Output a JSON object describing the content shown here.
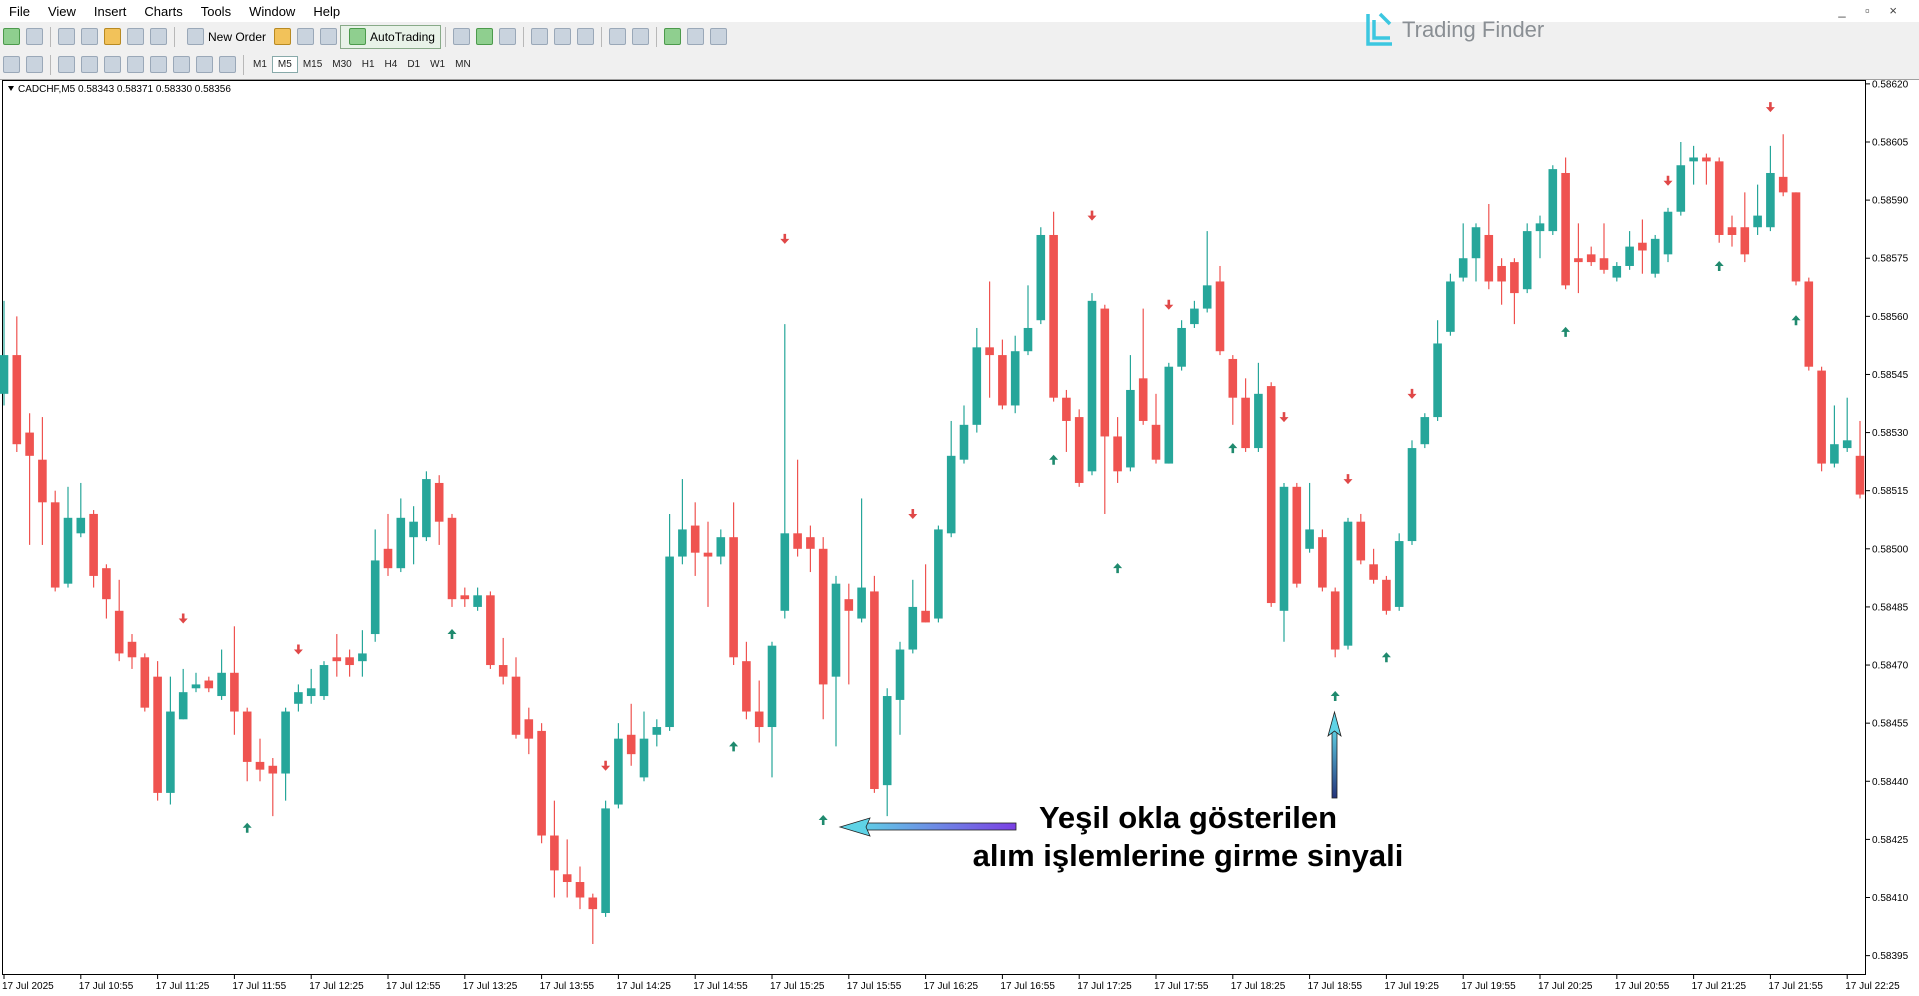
{
  "menu": [
    "File",
    "View",
    "Insert",
    "Charts",
    "Tools",
    "Window",
    "Help"
  ],
  "toolbar": {
    "new_order": "New Order",
    "autotrading": "AutoTrading"
  },
  "timeframes": [
    "M1",
    "M5",
    "M15",
    "M30",
    "H1",
    "H4",
    "D1",
    "W1",
    "MN"
  ],
  "logo": "Trading Finder",
  "chart_data": {
    "type": "candlestick",
    "symbol_info": "CADCHF,M5  0.58343 0.58371 0.58330 0.58356",
    "annotations": [
      "Yeşil okla gösterilen",
      "alım işlemlerine girme sinyali"
    ],
    "up_color": "#26a69a",
    "down_color": "#ef5350",
    "buy_color": "#1f8a6e",
    "sell_color": "#e04848",
    "open": [
      0.5854,
      0.5855,
      0.5853,
      0.58523,
      0.58512,
      0.58491,
      0.58504,
      0.58509,
      0.58495,
      0.58484,
      0.58476,
      0.58472,
      0.58467,
      0.58437,
      0.58456,
      0.58464,
      0.58466,
      0.58462,
      0.58468,
      0.58458,
      0.58445,
      0.58444,
      0.58442,
      0.5846,
      0.58462,
      0.58462,
      0.58472,
      0.58472,
      0.58471,
      0.58478,
      0.585,
      0.58495,
      0.58503,
      0.58503,
      0.58517,
      0.58508,
      0.58488,
      0.58485,
      0.58488,
      0.5847,
      0.58467,
      0.58456,
      0.58453,
      0.58426,
      0.58416,
      0.58414,
      0.5841,
      0.58406,
      0.58434,
      0.58452,
      0.58441,
      0.58452,
      0.58454,
      0.58498,
      0.58506,
      0.58499,
      0.58498,
      0.58503,
      0.58471,
      0.58458,
      0.58454,
      0.58484,
      0.58504,
      0.58503,
      0.585,
      0.58467,
      0.58487,
      0.58482,
      0.58489,
      0.58439,
      0.58461,
      0.58474,
      0.58484,
      0.58482,
      0.58504,
      0.58523,
      0.58532,
      0.58552,
      0.5855,
      0.58537,
      0.58551,
      0.58559,
      0.58581,
      0.58539,
      0.58534,
      0.5852,
      0.58562,
      0.58529,
      0.58521,
      0.58544,
      0.58532,
      0.58522,
      0.58547,
      0.58558,
      0.58562,
      0.58569,
      0.58549,
      0.58539,
      0.58526,
      0.58542,
      0.58484,
      0.58516,
      0.585,
      0.58503,
      0.58489,
      0.58475,
      0.58507,
      0.58496,
      0.58492,
      0.58485,
      0.58502,
      0.58527,
      0.58534,
      0.58556,
      0.5857,
      0.58575,
      0.58581,
      0.58573,
      0.58574,
      0.58567,
      0.58582,
      0.58582,
      0.58597,
      0.58575,
      0.58576,
      0.58575,
      0.5857,
      0.58573,
      0.58579,
      0.58571,
      0.58576,
      0.58587,
      0.586,
      0.58601,
      0.586,
      0.58583,
      0.58583,
      0.58583,
      0.58583,
      0.58596,
      0.58592,
      0.58569,
      0.58546,
      0.58522,
      0.58526,
      0.58524
    ],
    "high": [
      0.58564,
      0.5856,
      0.58535,
      0.58534,
      0.58515,
      0.58516,
      0.58517,
      0.5851,
      0.58496,
      0.58492,
      0.58478,
      0.58473,
      0.58471,
      0.58467,
      0.58469,
      0.58468,
      0.58467,
      0.58474,
      0.5848,
      0.58459,
      0.58451,
      0.58446,
      0.58459,
      0.58465,
      0.58469,
      0.58471,
      0.58478,
      0.58474,
      0.58479,
      0.58505,
      0.58509,
      0.58513,
      0.58511,
      0.5852,
      0.58519,
      0.58509,
      0.5849,
      0.5849,
      0.58489,
      0.58477,
      0.58472,
      0.58459,
      0.58455,
      0.58435,
      0.58425,
      0.58418,
      0.58411,
      0.58435,
      0.58455,
      0.5846,
      0.58458,
      0.58456,
      0.58509,
      0.58518,
      0.58512,
      0.58507,
      0.58505,
      0.58512,
      0.58476,
      0.58466,
      0.58476,
      0.58558,
      0.58523,
      0.58506,
      0.58503,
      0.58493,
      0.58491,
      0.58513,
      0.58493,
      0.58464,
      0.58476,
      0.58492,
      0.58496,
      0.58506,
      0.58533,
      0.58537,
      0.58557,
      0.58569,
      0.58554,
      0.58555,
      0.58568,
      0.58583,
      0.58587,
      0.58541,
      0.58536,
      0.58566,
      0.58563,
      0.58534,
      0.5855,
      0.58562,
      0.5854,
      0.58548,
      0.58559,
      0.58564,
      0.58582,
      0.58573,
      0.5855,
      0.58544,
      0.58548,
      0.58543,
      0.58517,
      0.58517,
      0.58517,
      0.58505,
      0.5849,
      0.58508,
      0.58509,
      0.585,
      0.58493,
      0.58504,
      0.58528,
      0.58535,
      0.58559,
      0.58571,
      0.58584,
      0.58584,
      0.58589,
      0.58575,
      0.58575,
      0.58584,
      0.58586,
      0.58599,
      0.58601,
      0.58584,
      0.58578,
      0.58584,
      0.58574,
      0.58582,
      0.58585,
      0.58581,
      0.58588,
      0.58605,
      0.58604,
      0.58602,
      0.58601,
      0.58586,
      0.58592,
      0.58594,
      0.58604,
      0.58607,
      0.58592,
      0.5857,
      0.58547,
      0.58537,
      0.58539,
      0.58533
    ],
    "low": [
      0.58537,
      0.58525,
      0.58501,
      0.58501,
      0.58489,
      0.5849,
      0.58503,
      0.5849,
      0.58482,
      0.58471,
      0.58469,
      0.58458,
      0.58435,
      0.58434,
      0.58456,
      0.58463,
      0.58463,
      0.58461,
      0.58452,
      0.5844,
      0.5844,
      0.58431,
      0.58435,
      0.58458,
      0.5846,
      0.58461,
      0.58467,
      0.58467,
      0.58467,
      0.58476,
      0.58493,
      0.58494,
      0.58496,
      0.58502,
      0.58501,
      0.58485,
      0.58485,
      0.58484,
      0.58469,
      0.58465,
      0.58451,
      0.58447,
      0.58424,
      0.5841,
      0.5841,
      0.58407,
      0.58398,
      0.58405,
      0.58433,
      0.58444,
      0.5844,
      0.58449,
      0.58453,
      0.58496,
      0.58493,
      0.58485,
      0.58496,
      0.5847,
      0.58456,
      0.5845,
      0.58441,
      0.58482,
      0.58498,
      0.58494,
      0.58456,
      0.58449,
      0.58465,
      0.58481,
      0.58437,
      0.58431,
      0.58452,
      0.58473,
      0.58481,
      0.58481,
      0.58503,
      0.58522,
      0.5853,
      0.58539,
      0.58536,
      0.58535,
      0.5855,
      0.58558,
      0.58538,
      0.58525,
      0.58516,
      0.58519,
      0.58509,
      0.58517,
      0.5852,
      0.58532,
      0.58522,
      0.58522,
      0.58546,
      0.58557,
      0.58561,
      0.5855,
      0.58532,
      0.58525,
      0.58525,
      0.58485,
      0.58476,
      0.5849,
      0.58499,
      0.58489,
      0.58472,
      0.58474,
      0.58496,
      0.58491,
      0.58483,
      0.58484,
      0.58501,
      0.58526,
      0.58533,
      0.58555,
      0.58569,
      0.58569,
      0.58567,
      0.58563,
      0.58558,
      0.58566,
      0.58575,
      0.58581,
      0.58567,
      0.58566,
      0.58573,
      0.58571,
      0.58569,
      0.58572,
      0.58571,
      0.5857,
      0.58574,
      0.58586,
      0.58594,
      0.58594,
      0.58579,
      0.58578,
      0.58574,
      0.58581,
      0.58582,
      0.58591,
      0.58568,
      0.58546,
      0.5852,
      0.58521,
      0.58525,
      0.58513
    ],
    "close": [
      0.5855,
      0.58527,
      0.58524,
      0.58512,
      0.5849,
      0.58508,
      0.58508,
      0.58493,
      0.58487,
      0.58473,
      0.58472,
      0.58459,
      0.58437,
      0.58458,
      0.58463,
      0.58465,
      0.58464,
      0.58468,
      0.58458,
      0.58445,
      0.58443,
      0.58442,
      0.58458,
      0.58463,
      0.58464,
      0.5847,
      0.58471,
      0.5847,
      0.58473,
      0.58497,
      0.58495,
      0.58508,
      0.58507,
      0.58518,
      0.58507,
      0.58487,
      0.58487,
      0.58488,
      0.5847,
      0.58467,
      0.58452,
      0.58451,
      0.58426,
      0.58417,
      0.58414,
      0.5841,
      0.58407,
      0.58433,
      0.58451,
      0.58447,
      0.58451,
      0.58454,
      0.58498,
      0.58505,
      0.58499,
      0.58498,
      0.58503,
      0.58472,
      0.58458,
      0.58454,
      0.58475,
      0.58504,
      0.585,
      0.585,
      0.58465,
      0.58491,
      0.58484,
      0.5849,
      0.58438,
      0.58462,
      0.58474,
      0.58485,
      0.58481,
      0.58505,
      0.58524,
      0.58532,
      0.58552,
      0.5855,
      0.58537,
      0.58551,
      0.58557,
      0.58581,
      0.58539,
      0.58533,
      0.58517,
      0.58564,
      0.58529,
      0.5852,
      0.58541,
      0.58533,
      0.58523,
      0.58547,
      0.58557,
      0.58562,
      0.58568,
      0.58551,
      0.58539,
      0.58526,
      0.5854,
      0.58486,
      0.58516,
      0.58491,
      0.58505,
      0.5849,
      0.58474,
      0.58507,
      0.58497,
      0.58492,
      0.58484,
      0.58502,
      0.58526,
      0.58534,
      0.58553,
      0.58569,
      0.58575,
      0.58583,
      0.58569,
      0.58569,
      0.58566,
      0.58582,
      0.58584,
      0.58598,
      0.58568,
      0.58574,
      0.58574,
      0.58572,
      0.58573,
      0.58578,
      0.58577,
      0.5858,
      0.58587,
      0.58599,
      0.58601,
      0.586,
      0.58581,
      0.58581,
      0.58576,
      0.58586,
      0.58597,
      0.58592,
      0.58569,
      0.58547,
      0.58522,
      0.58527,
      0.58528,
      0.58514
    ],
    "buy_signals": {
      "x": [
        19,
        35,
        57,
        64,
        82,
        87,
        96,
        104,
        108,
        122,
        134,
        140
      ],
      "y": [
        0.58428,
        0.58478,
        0.58449,
        0.5843,
        0.58523,
        0.58495,
        0.58526,
        0.58462,
        0.58472,
        0.58556,
        0.58573,
        0.58559
      ]
    },
    "sell_signals": {
      "x": [
        14,
        23,
        47,
        61,
        71,
        85,
        91,
        100,
        105,
        110,
        130,
        138
      ],
      "y": [
        0.58482,
        0.58474,
        0.58444,
        0.5858,
        0.58509,
        0.58586,
        0.58563,
        0.58534,
        0.58518,
        0.5854,
        0.58595,
        0.58614
      ]
    },
    "ylim": [
      0.5839,
      0.58621
    ],
    "yticks": [
      {
        "value": 0.5862,
        "label": "0.58620"
      },
      {
        "value": 0.58605,
        "label": "0.58605"
      },
      {
        "value": 0.5859,
        "label": "0.58590"
      },
      {
        "value": 0.58575,
        "label": "0.58575"
      },
      {
        "value": 0.5856,
        "label": "0.58560"
      },
      {
        "value": 0.58545,
        "label": "0.58545"
      },
      {
        "value": 0.5853,
        "label": "0.58530"
      },
      {
        "value": 0.58515,
        "label": "0.58515"
      },
      {
        "value": 0.585,
        "label": "0.58500"
      },
      {
        "value": 0.58485,
        "label": "0.58485"
      },
      {
        "value": 0.5847,
        "label": "0.58470"
      },
      {
        "value": 0.58455,
        "label": "0.58455"
      },
      {
        "value": 0.5844,
        "label": "0.58440"
      },
      {
        "value": 0.58425,
        "label": "0.58425"
      },
      {
        "value": 0.5841,
        "label": "0.58410"
      },
      {
        "value": 0.58395,
        "label": "0.58395"
      }
    ],
    "xticks": [
      {
        "value": 0,
        "label": "17 Jul 2025"
      },
      {
        "value": 6,
        "label": "17 Jul 10:55"
      },
      {
        "value": 12,
        "label": "17 Jul 11:25"
      },
      {
        "value": 18,
        "label": "17 Jul 11:55"
      },
      {
        "value": 24,
        "label": "17 Jul 12:25"
      },
      {
        "value": 30,
        "label": "17 Jul 12:55"
      },
      {
        "value": 36,
        "label": "17 Jul 13:25"
      },
      {
        "value": 42,
        "label": "17 Jul 13:55"
      },
      {
        "value": 48,
        "label": "17 Jul 14:25"
      },
      {
        "value": 54,
        "label": "17 Jul 14:55"
      },
      {
        "value": 60,
        "label": "17 Jul 15:25"
      },
      {
        "value": 66,
        "label": "17 Jul 15:55"
      },
      {
        "value": 72,
        "label": "17 Jul 16:25"
      },
      {
        "value": 78,
        "label": "17 Jul 16:55"
      },
      {
        "value": 84,
        "label": "17 Jul 17:25"
      },
      {
        "value": 90,
        "label": "17 Jul 17:55"
      },
      {
        "value": 96,
        "label": "17 Jul 18:25"
      },
      {
        "value": 102,
        "label": "17 Jul 18:55"
      },
      {
        "value": 108,
        "label": "17 Jul 19:25"
      },
      {
        "value": 114,
        "label": "17 Jul 19:55"
      },
      {
        "value": 120,
        "label": "17 Jul 20:25"
      },
      {
        "value": 126,
        "label": "17 Jul 20:55"
      },
      {
        "value": 132,
        "label": "17 Jul 21:25"
      },
      {
        "value": 138,
        "label": "17 Jul 21:55"
      },
      {
        "value": 144,
        "label": "17 Jul 22:25"
      }
    ]
  }
}
